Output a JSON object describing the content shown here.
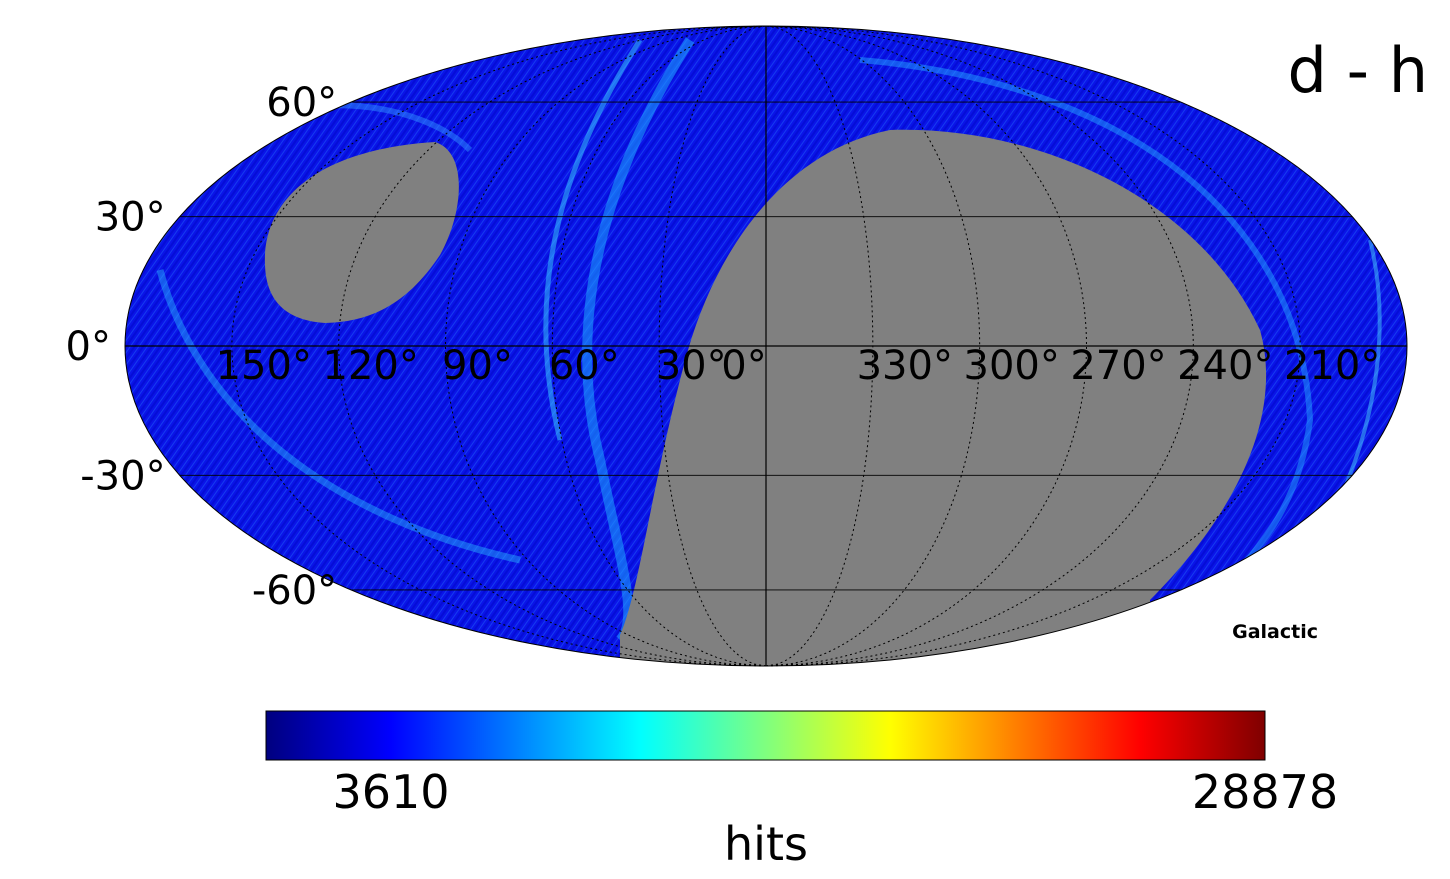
{
  "chart_data": {
    "type": "heatmap",
    "projection": "mollweide",
    "title": "d - h",
    "coord_system": "Galactic",
    "lat_ticks": [
      {
        "value": 60,
        "label": "60°"
      },
      {
        "value": 30,
        "label": "30°"
      },
      {
        "value": 0,
        "label": "0°"
      },
      {
        "value": -30,
        "label": "-30°"
      },
      {
        "value": -60,
        "label": "-60°"
      }
    ],
    "lon_ticks": [
      {
        "value": 150,
        "label": "150°"
      },
      {
        "value": 120,
        "label": "120°"
      },
      {
        "value": 90,
        "label": "90°"
      },
      {
        "value": 60,
        "label": "60°"
      },
      {
        "value": 30,
        "label": "30°"
      },
      {
        "value": 0,
        "label": "0°"
      },
      {
        "value": 330,
        "label": "330°"
      },
      {
        "value": 300,
        "label": "300°"
      },
      {
        "value": 270,
        "label": "270°"
      },
      {
        "value": 240,
        "label": "240°"
      },
      {
        "value": 210,
        "label": "210°"
      }
    ],
    "colorbar": {
      "label": "hits",
      "min": 3610,
      "max": 28878,
      "min_label": "3610",
      "max_label": "28878",
      "colormap": "jet"
    },
    "unobserved_color": "#808080",
    "graticule_step_deg": 30
  }
}
